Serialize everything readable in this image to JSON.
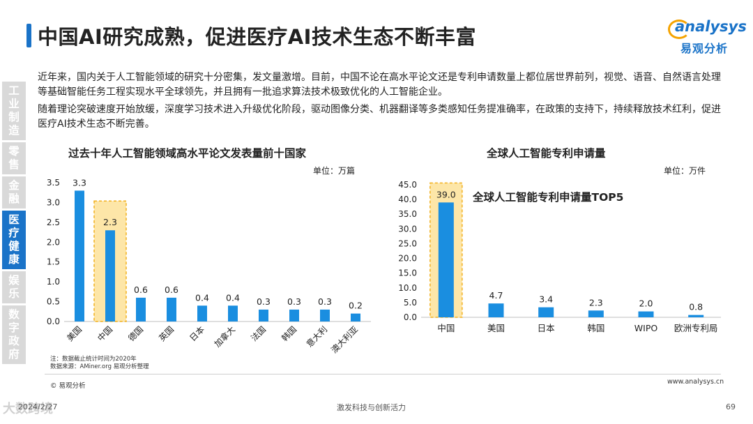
{
  "header": {
    "title": "中国AI研究成熟，促进医疗AI技术生态不断丰富",
    "logo_en": "analysys",
    "logo_cn": "易观分析"
  },
  "sidebar": {
    "items": [
      {
        "label": "工业制造",
        "active": false
      },
      {
        "label": "零售",
        "active": false
      },
      {
        "label": "金融",
        "active": false
      },
      {
        "label": "医疗健康",
        "active": true
      },
      {
        "label": "娱乐",
        "active": false
      },
      {
        "label": "数字政府",
        "active": false
      }
    ]
  },
  "body": {
    "para1": "近年来，国内关于人工智能领域的研究十分密集，发文量激增。目前，中国不论在高水平论文还是专利申请数量上都位居世界前列，视觉、语音、自然语言处理等基础智能任务工程实现水平全球领先，并且拥有一批追求算法技术极致优化的人工智能企业。",
    "para2": "随着理论突破速度开始放缓，深度学习技术进入升级优化阶段，驱动图像分类、机器翻译等多类感知任务提准确率，在政策的支持下，持续释放技术红利，促进医疗AI技术生态不断完善。"
  },
  "chart_data": [
    {
      "type": "bar",
      "title": "过去十年人工智能领域高水平论文发表量前十国家",
      "unit": "单位：万篇",
      "categories": [
        "美国",
        "中国",
        "德国",
        "英国",
        "日本",
        "加拿大",
        "法国",
        "韩国",
        "意大利",
        "澳大利亚"
      ],
      "values": [
        3.3,
        2.3,
        0.6,
        0.6,
        0.4,
        0.4,
        0.3,
        0.3,
        0.3,
        0.2
      ],
      "value_labels": [
        "3.3",
        "2.3",
        "0.6",
        "0.6",
        "0.4",
        "0.4",
        "0.3",
        "0.3",
        "0.3",
        "0.2"
      ],
      "ylim": [
        0,
        3.5
      ],
      "yticks": [
        "0.0",
        "0.5",
        "1.0",
        "1.5",
        "2.0",
        "2.5",
        "3.0",
        "3.5"
      ],
      "highlight": "中国",
      "bar_color": "#1a8ee0",
      "highlight_color": "#fde6a8",
      "notes": [
        "注：数据截止统计时间为2020年",
        "数据来源：AMiner.org 易观分析整理"
      ]
    },
    {
      "type": "bar",
      "title": "全球人工智能专利申请量",
      "unit": "单位：万件",
      "annotation": "全球人工智能专利申请量TOP5",
      "categories": [
        "中国",
        "美国",
        "日本",
        "韩国",
        "WIPO",
        "欧洲专利局"
      ],
      "values": [
        39.0,
        4.7,
        3.4,
        2.3,
        2.0,
        0.8
      ],
      "value_labels": [
        "39.0",
        "4.7",
        "3.4",
        "2.3",
        "2.0",
        "0.8"
      ],
      "ylim": [
        0,
        45
      ],
      "yticks": [
        "0.0",
        "5.0",
        "10.0",
        "15.0",
        "20.0",
        "25.0",
        "30.0",
        "35.0",
        "40.0",
        "45.0"
      ],
      "highlight": "中国",
      "bar_color": "#1a8ee0",
      "highlight_color": "#fde6a8"
    }
  ],
  "footer": {
    "copyright": "© 易观分析",
    "website": "www.analysys.cn",
    "date": "2024/2/27",
    "slogan": "激发科技与创新活力",
    "page": "69",
    "watermark": "大数跨境"
  }
}
